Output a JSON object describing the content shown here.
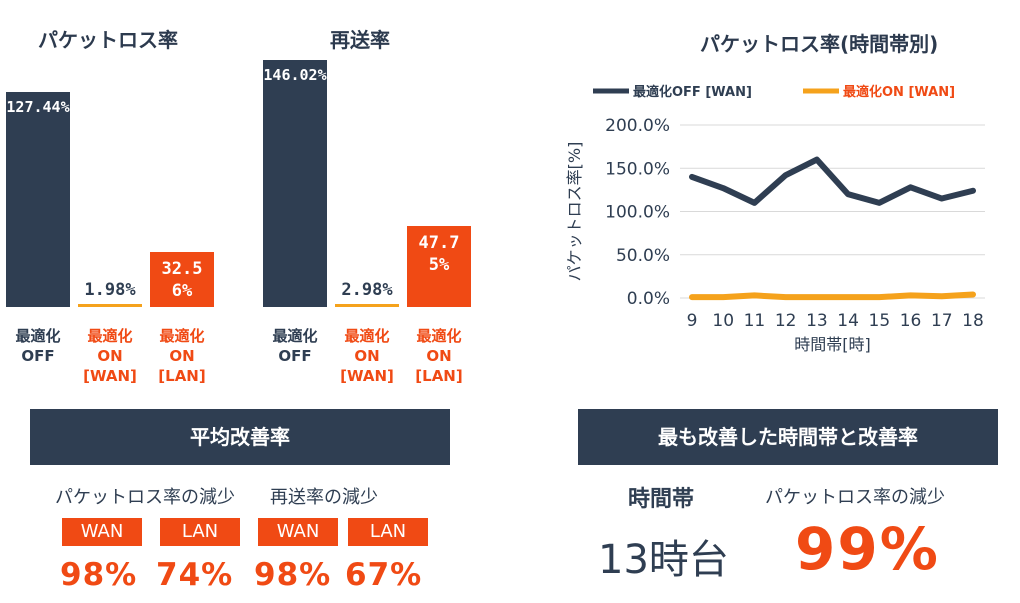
{
  "left_charts": {
    "packet_loss": {
      "title": "パケットロス率",
      "chart_data": {
        "type": "bar",
        "title": "パケットロス率",
        "categories": [
          "最適化\nOFF",
          "最適化\nON\n[WAN]",
          "最適化\nON\n[LAN]"
        ],
        "values": [
          127.44,
          1.98,
          32.56
        ],
        "value_labels": [
          "127.44%",
          "1.98%",
          "32.56%"
        ],
        "colors": [
          "#2f3e52",
          "#f5a21c",
          "#f04a14"
        ]
      }
    },
    "retransmission": {
      "title": "再送率",
      "chart_data": {
        "type": "bar",
        "title": "再送率",
        "categories": [
          "最適化\nOFF",
          "最適化\nON\n[WAN]",
          "最適化\nON\n[LAN]"
        ],
        "values": [
          146.02,
          2.98,
          47.75
        ],
        "value_labels": [
          "146.02%",
          "2.98%",
          "47.75%"
        ],
        "colors": [
          "#2f3e52",
          "#f5a21c",
          "#f04a14"
        ]
      }
    }
  },
  "line_chart": {
    "title": "パケットロス率(時間帯別)",
    "chart_data": {
      "type": "line",
      "title": "パケットロス率(時間帯別)",
      "xlabel": "時間帯[時]",
      "ylabel": "パケットロス率[%]",
      "x": [
        9,
        10,
        11,
        12,
        13,
        14,
        15,
        16,
        17,
        18
      ],
      "ylim": [
        0,
        200
      ],
      "y_ticks": [
        "0.0%",
        "50.0%",
        "100.0%",
        "150.0%",
        "200.0%"
      ],
      "legend_position": "top",
      "grid": true,
      "series": [
        {
          "name": "最適化OFF [WAN]",
          "color": "#2f3e52",
          "values": [
            140,
            127,
            110,
            142,
            160,
            120,
            110,
            128,
            115,
            124
          ]
        },
        {
          "name": "最適化ON [WAN]",
          "color": "#f5a21c",
          "values": [
            1,
            1,
            3,
            1,
            1,
            1,
            1,
            3,
            2,
            4
          ]
        }
      ]
    }
  },
  "summary_left": {
    "banner": "平均改善率",
    "packet_label": "パケットロス率の減少",
    "resend_label": "再送率の減少",
    "items": [
      {
        "tag": "WAN",
        "value": "98%"
      },
      {
        "tag": "LAN",
        "value": "74%"
      },
      {
        "tag": "WAN",
        "value": "98%"
      },
      {
        "tag": "LAN",
        "value": "67%"
      }
    ]
  },
  "summary_right": {
    "banner": "最も改善した時間帯と改善率",
    "time_label": "時間帯",
    "reduction_label": "パケットロス率の減少",
    "time_value": "13時台",
    "reduction_value": "99%"
  }
}
